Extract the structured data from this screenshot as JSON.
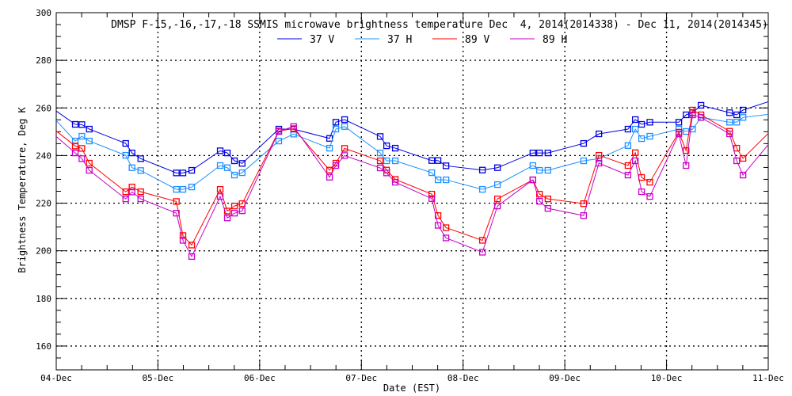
{
  "chart_data": {
    "type": "line",
    "title": "DMSP F-15,-16,-17,-18 SSMIS microwave brightness temperature Dec  4, 2014(2014338) - Dec 11, 2014(2014345)",
    "xlabel": "Date (EST)",
    "ylabel": "Brightness Temperature, Deg K",
    "xlim_days": [
      0,
      7
    ],
    "ylim": [
      150,
      300
    ],
    "x_tick_labels": [
      "04-Dec",
      "05-Dec",
      "06-Dec",
      "07-Dec",
      "08-Dec",
      "09-Dec",
      "10-Dec",
      "11-Dec"
    ],
    "y_ticks": [
      160,
      180,
      200,
      220,
      240,
      260,
      280,
      300
    ],
    "grid": true,
    "legend_position": "top-center",
    "x_unit": "days since 04-Dec 00:00",
    "x": [
      0.187,
      0.252,
      0.325,
      0.683,
      0.745,
      0.831,
      1.181,
      1.246,
      1.332,
      1.612,
      1.682,
      1.752,
      1.828,
      2.188,
      2.334,
      2.687,
      2.749,
      2.835,
      3.185,
      3.248,
      3.333,
      3.692,
      3.754,
      3.832,
      4.19,
      4.338,
      4.686,
      4.751,
      4.834,
      5.185,
      5.335,
      5.621,
      5.693,
      5.755,
      5.836,
      6.121,
      6.192,
      6.256,
      6.339,
      6.62,
      6.69,
      6.752
    ],
    "series": [
      {
        "name": "37 V",
        "color": "#0000e0",
        "edge_start": 258.7,
        "edge_end": 262.6,
        "values": [
          253.1,
          253.0,
          251.1,
          245.1,
          241.1,
          238.7,
          232.7,
          232.7,
          233.8,
          242.0,
          241.1,
          237.8,
          236.7,
          251.1,
          251.1,
          247.2,
          254.0,
          255.1,
          248.0,
          244.1,
          243.1,
          237.9,
          237.9,
          235.7,
          233.9,
          234.9,
          241.1,
          241.1,
          241.1,
          245.1,
          249.1,
          251.1,
          255.1,
          253.1,
          254.0,
          254.0,
          257.1,
          258.0,
          261.1,
          258.0,
          257.1,
          259.1
        ]
      },
      {
        "name": "37 H",
        "color": "#1e90ff",
        "edge_start": 254.7,
        "edge_end": 257.3,
        "values": [
          246.1,
          248.1,
          246.1,
          240.1,
          234.9,
          233.7,
          225.8,
          225.8,
          226.8,
          235.8,
          234.9,
          231.8,
          232.8,
          246.1,
          249.0,
          243.1,
          251.1,
          252.2,
          241.1,
          237.8,
          237.8,
          232.8,
          229.8,
          229.8,
          225.8,
          227.8,
          235.8,
          233.8,
          233.8,
          237.8,
          238.7,
          244.2,
          251.1,
          247.1,
          248.1,
          251.1,
          250.1,
          251.1,
          256.0,
          254.0,
          254.0,
          256.0
        ]
      },
      {
        "name": "89 V",
        "color": "#ff0000",
        "edge_start": 250.3,
        "edge_end": 249.3,
        "values": [
          244.0,
          243.0,
          236.8,
          224.8,
          226.8,
          224.8,
          220.7,
          206.4,
          202.4,
          225.8,
          216.7,
          218.8,
          219.8,
          250.3,
          251.3,
          233.9,
          236.8,
          243.0,
          237.8,
          233.9,
          230.0,
          223.8,
          214.8,
          209.7,
          204.4,
          221.8,
          229.8,
          223.8,
          221.8,
          219.8,
          240.1,
          235.8,
          241.2,
          230.8,
          228.8,
          249.8,
          242.1,
          259.1,
          257.1,
          250.2,
          243.1,
          238.8
        ]
      },
      {
        "name": "89 H",
        "color": "#c800c8",
        "edge_start": 248.0,
        "edge_end": 244.6,
        "values": [
          241.1,
          238.7,
          233.8,
          221.8,
          224.7,
          221.8,
          215.8,
          204.4,
          197.6,
          222.8,
          213.8,
          215.8,
          216.8,
          250.1,
          252.2,
          230.9,
          235.8,
          240.0,
          234.8,
          232.7,
          228.8,
          221.9,
          210.7,
          205.4,
          199.4,
          218.8,
          229.8,
          220.8,
          217.8,
          214.8,
          236.8,
          231.8,
          237.8,
          224.8,
          222.8,
          249.1,
          235.8,
          257.1,
          256.0,
          249.1,
          237.8,
          231.8
        ]
      }
    ]
  }
}
